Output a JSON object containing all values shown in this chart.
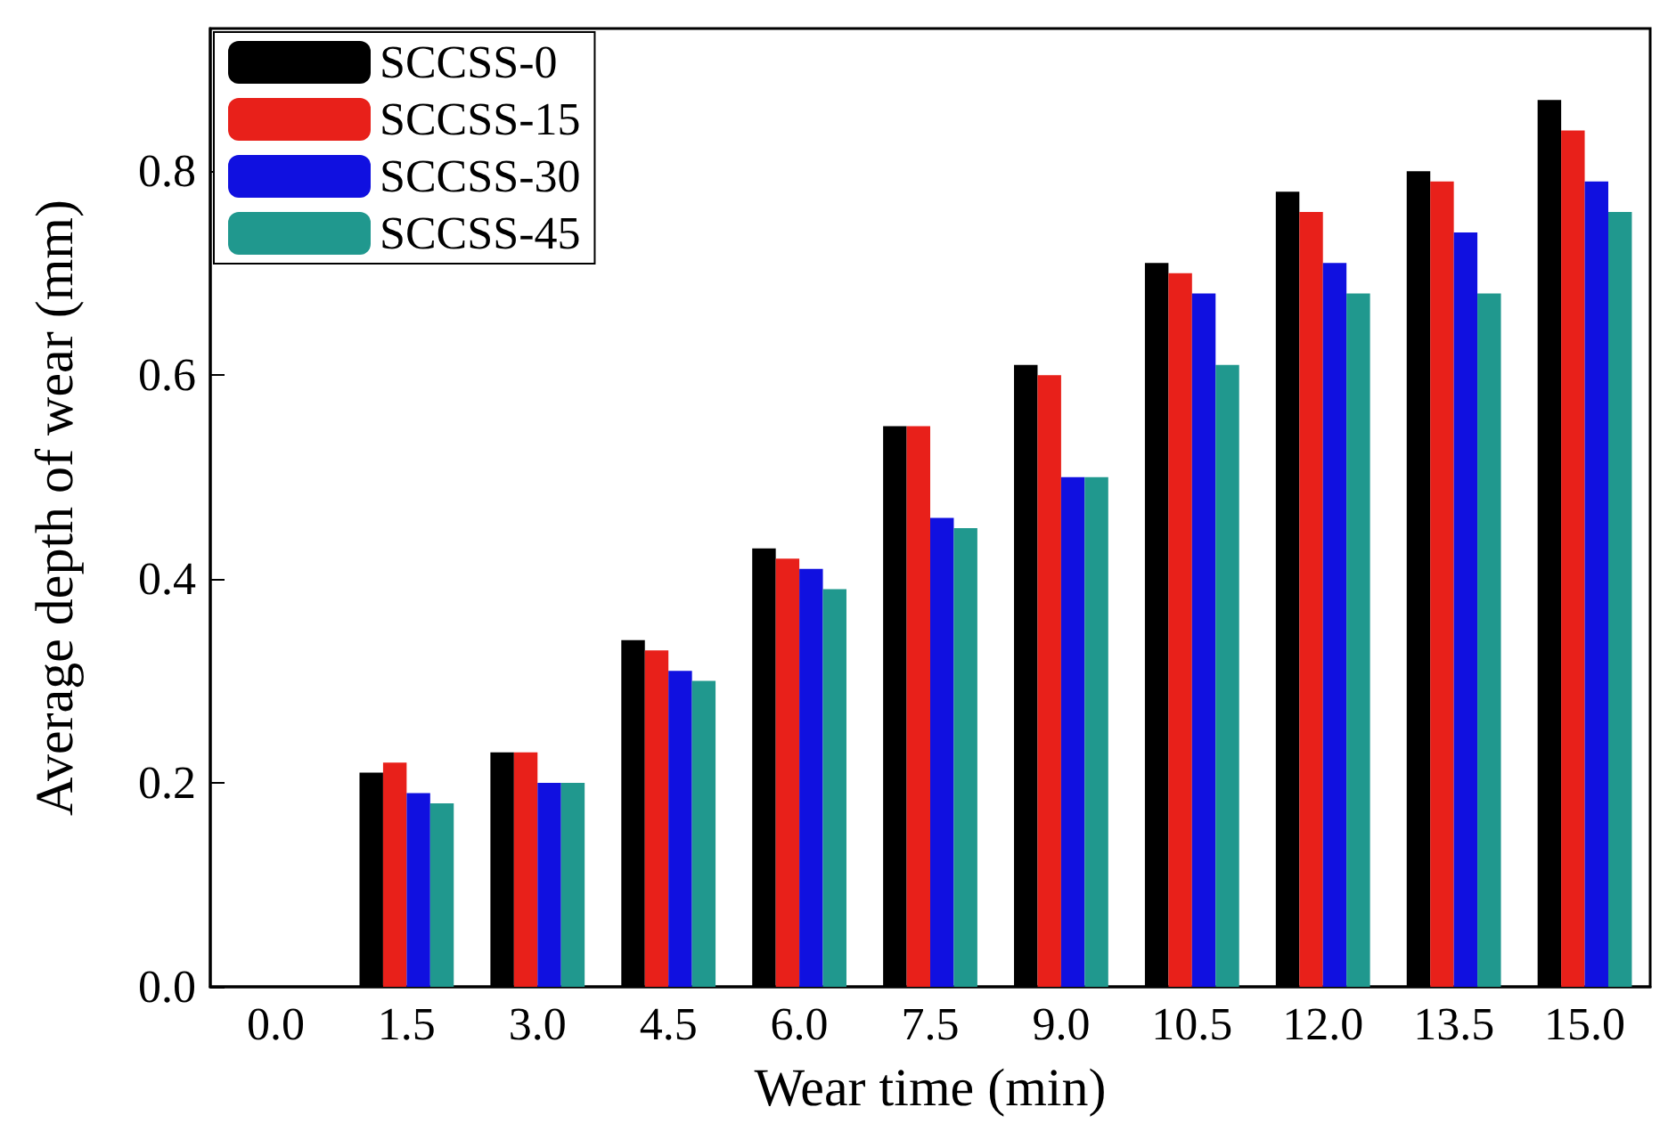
{
  "chart_data": {
    "type": "bar",
    "xlabel": "Wear time (min)",
    "ylabel": "Average depth of wear (mm)",
    "categories": [
      "0.0",
      "1.5",
      "3.0",
      "4.5",
      "6.0",
      "7.5",
      "9.0",
      "10.5",
      "12.0",
      "13.5",
      "15.0"
    ],
    "series": [
      {
        "name": "SCCSS-0",
        "color": "#000000",
        "values": [
          null,
          0.21,
          0.23,
          0.34,
          0.43,
          0.55,
          0.61,
          0.71,
          0.78,
          0.8,
          0.87
        ]
      },
      {
        "name": "SCCSS-15",
        "color": "#e8201a",
        "values": [
          null,
          0.22,
          0.23,
          0.33,
          0.42,
          0.55,
          0.6,
          0.7,
          0.76,
          0.79,
          0.84
        ]
      },
      {
        "name": "SCCSS-30",
        "color": "#1010e0",
        "values": [
          null,
          0.19,
          0.2,
          0.31,
          0.41,
          0.46,
          0.5,
          0.68,
          0.71,
          0.74,
          0.79
        ]
      },
      {
        "name": "SCCSS-45",
        "color": "#20988e",
        "values": [
          null,
          0.18,
          0.2,
          0.3,
          0.39,
          0.45,
          0.5,
          0.61,
          0.68,
          0.68,
          0.76
        ]
      }
    ],
    "ylim": [
      0,
      0.94
    ],
    "yticks": [
      {
        "value": 0,
        "label": "0.0"
      },
      {
        "value": 0.2,
        "label": "0.2"
      },
      {
        "value": 0.4,
        "label": "0.4"
      },
      {
        "value": 0.6,
        "label": "0.6"
      },
      {
        "value": 0.8,
        "label": "0.8"
      }
    ],
    "grid": false,
    "legend": "top left"
  }
}
